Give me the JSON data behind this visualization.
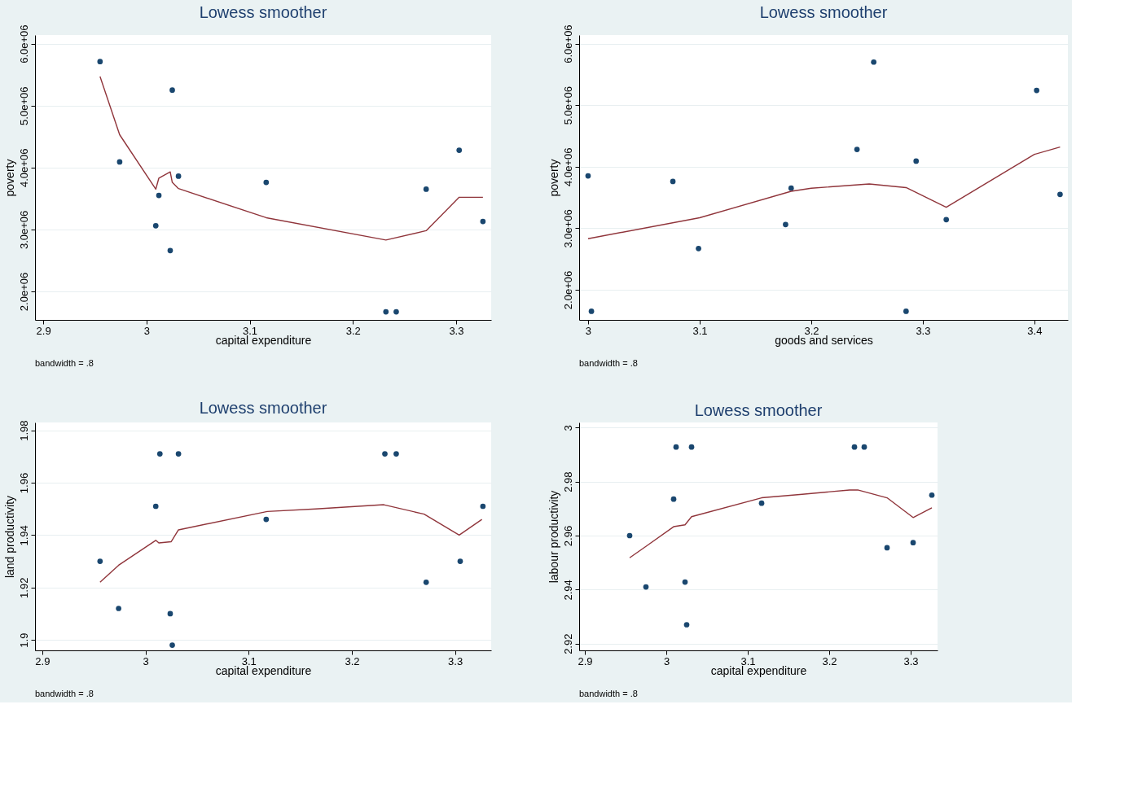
{
  "chart_data": [
    {
      "type": "scatter",
      "title": "Lowess smoother",
      "xlabel": "capital expenditure",
      "ylabel": "poverty",
      "annotations": [
        "bandwidth = .8"
      ],
      "xlim": [
        2.892,
        3.334
      ],
      "ylim": [
        1540000,
        6140000
      ],
      "xticks": [
        2.9,
        3,
        3.1,
        3.2,
        3.3
      ],
      "yticks": [
        {
          "value": 2000000,
          "label": "2.0e+06"
        },
        {
          "value": 3000000,
          "label": "3.0e+06"
        },
        {
          "value": 4000000,
          "label": "4.0e+06"
        },
        {
          "value": 5000000,
          "label": "5.0e+06"
        },
        {
          "value": 6000000,
          "label": "6.0e+06"
        }
      ],
      "grid": "y",
      "marker": "circle",
      "series": [
        {
          "color": "#1a476f",
          "x": [
            2.955,
            2.974,
            3.012,
            3.009,
            3.025,
            3.031,
            3.023,
            3.116,
            3.232,
            3.242,
            3.271,
            3.303,
            3.326
          ],
          "values": [
            5710000,
            4090000,
            3550000,
            3060000,
            5250000,
            3860000,
            2660000,
            3760000,
            1670000,
            1670000,
            3650000,
            4280000,
            3130000
          ]
        },
        {
          "type": "line",
          "marker": "none",
          "line_style": "solid",
          "color": "#90353b",
          "x": [
            2.955,
            2.974,
            3.009,
            3.012,
            3.023,
            3.025,
            3.031,
            3.116,
            3.232,
            3.271,
            3.303,
            3.326
          ],
          "values": [
            5470000,
            4530000,
            3650000,
            3830000,
            3930000,
            3760000,
            3660000,
            3190000,
            2830000,
            2980000,
            3520000,
            3520000
          ]
        }
      ]
    },
    {
      "type": "scatter",
      "title": "Lowess smoother",
      "xlabel": "goods and services",
      "ylabel": "poverty",
      "annotations": [
        "bandwidth = .8"
      ],
      "xlim": [
        2.992,
        3.43
      ],
      "ylim": [
        1510000,
        6140000
      ],
      "xticks": [
        3,
        3.1,
        3.2,
        3.3,
        3.4
      ],
      "yticks": [
        {
          "value": 2000000,
          "label": "2.0e+06"
        },
        {
          "value": 3000000,
          "label": "3.0e+06"
        },
        {
          "value": 4000000,
          "label": "4.0e+06"
        },
        {
          "value": 5000000,
          "label": "5.0e+06"
        },
        {
          "value": 6000000,
          "label": "6.0e+06"
        }
      ],
      "grid": "y",
      "marker": "circle",
      "series": [
        {
          "color": "#1a476f",
          "x": [
            3.0,
            3.003,
            3.076,
            3.099,
            3.177,
            3.182,
            3.241,
            3.256,
            3.285,
            3.294,
            3.321,
            3.402,
            3.423
          ],
          "values": [
            3850000,
            1650000,
            3760000,
            2670000,
            3060000,
            3650000,
            4280000,
            5700000,
            1650000,
            4090000,
            3140000,
            5240000,
            3550000
          ]
        },
        {
          "type": "line",
          "marker": "none",
          "line_style": "solid",
          "color": "#90353b",
          "x": [
            3.0,
            3.1,
            3.182,
            3.2,
            3.252,
            3.285,
            3.321,
            3.4,
            3.423
          ],
          "values": [
            2830000,
            3170000,
            3600000,
            3650000,
            3720000,
            3660000,
            3340000,
            4200000,
            4320000
          ]
        }
      ]
    },
    {
      "type": "scatter",
      "title": "Lowess smoother",
      "xlabel": "capital expenditure",
      "ylabel": "land productivity",
      "annotations": [
        "bandwidth = .8"
      ],
      "xlim": [
        2.893,
        3.335
      ],
      "ylim": [
        1.896,
        1.983
      ],
      "xticks": [
        2.9,
        3,
        3.1,
        3.2,
        3.3
      ],
      "yticks": [
        1.9,
        1.92,
        1.94,
        1.96,
        1.98
      ],
      "grid": "y",
      "marker": "circle",
      "series": [
        {
          "color": "#1a476f",
          "x": [
            2.956,
            2.974,
            3.01,
            3.014,
            3.032,
            3.024,
            3.026,
            3.117,
            3.232,
            3.243,
            3.272,
            3.305,
            3.327
          ],
          "values": [
            1.93,
            1.912,
            1.951,
            1.971,
            1.971,
            1.91,
            1.898,
            1.946,
            1.971,
            1.971,
            1.922,
            1.93,
            1.951
          ]
        },
        {
          "type": "line",
          "marker": "none",
          "line_style": "solid",
          "color": "#90353b",
          "x": [
            2.956,
            2.974,
            3.01,
            3.013,
            3.025,
            3.032,
            3.118,
            3.165,
            3.231,
            3.27,
            3.304,
            3.326
          ],
          "values": [
            1.922,
            1.9285,
            1.938,
            1.937,
            1.9375,
            1.942,
            1.949,
            1.95,
            1.9516,
            1.948,
            1.94,
            1.946
          ]
        }
      ]
    },
    {
      "type": "scatter",
      "title": "Lowess smoother",
      "xlabel": "capital expenditure",
      "ylabel": "labour productivity",
      "annotations": [
        "bandwidth = .8"
      ],
      "xlim": [
        2.893,
        3.333
      ],
      "ylim": [
        2.9175,
        3.0019
      ],
      "xticks": [
        2.9,
        3,
        3.1,
        3.2,
        3.3
      ],
      "yticks": [
        2.92,
        2.94,
        2.96,
        2.98,
        3
      ],
      "grid": "y",
      "marker": "circle",
      "series": [
        {
          "color": "#1a476f",
          "x": [
            2.955,
            2.975,
            3.009,
            3.012,
            3.031,
            3.023,
            3.025,
            3.117,
            3.231,
            3.243,
            3.271,
            3.303,
            3.326
          ],
          "values": [
            2.96,
            2.941,
            2.9735,
            2.9928,
            2.9928,
            2.9428,
            2.927,
            2.972,
            2.9928,
            2.9928,
            2.9555,
            2.9574,
            2.975
          ]
        },
        {
          "type": "line",
          "marker": "none",
          "line_style": "solid",
          "color": "#90353b",
          "x": [
            2.955,
            2.975,
            3.009,
            3.023,
            3.031,
            3.117,
            3.167,
            3.225,
            3.235,
            3.271,
            3.303,
            3.326
          ],
          "values": [
            2.9518,
            2.956,
            2.9633,
            2.964,
            2.967,
            2.974,
            2.9753,
            2.9769,
            2.9769,
            2.974,
            2.9667,
            2.9703
          ]
        }
      ]
    }
  ]
}
